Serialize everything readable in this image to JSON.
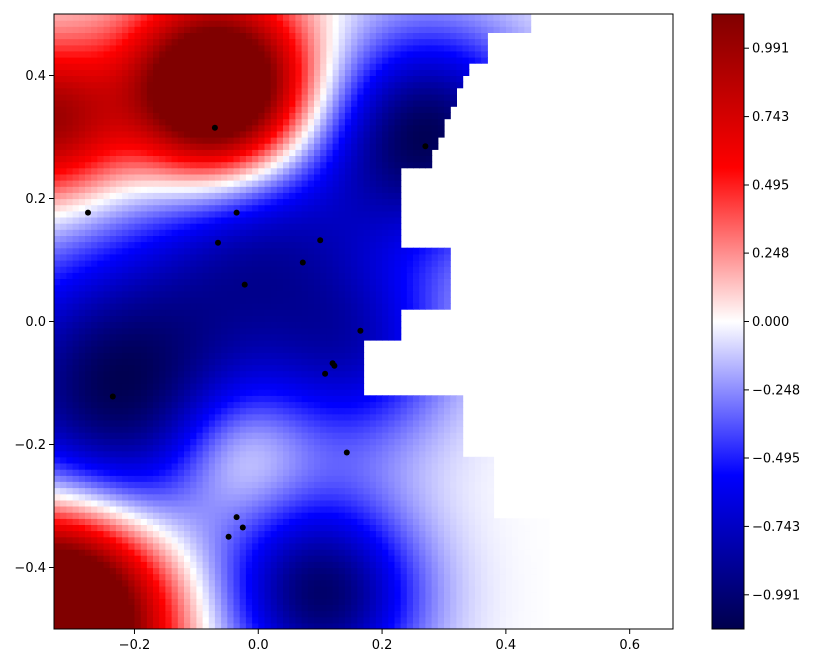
{
  "chart_data": {
    "type": "heatmap",
    "title": "",
    "xlabel": "",
    "ylabel": "",
    "xlim": [
      -0.33,
      0.67
    ],
    "ylim": [
      -0.5,
      0.5
    ],
    "x_ticks": [
      -0.2,
      0.0,
      0.2,
      0.4,
      0.6
    ],
    "x_tick_labels": [
      "−0.2",
      "0.0",
      "0.2",
      "0.4",
      "0.6"
    ],
    "y_ticks": [
      -0.4,
      -0.2,
      0.0,
      0.2,
      0.4
    ],
    "y_tick_labels": [
      "−0.4",
      "−0.2",
      "0.0",
      "0.2",
      "0.4"
    ],
    "grid": false,
    "colormap": "seismic",
    "colorbar": {
      "range": [
        -1.115,
        1.115
      ],
      "ticks": [
        -0.991,
        -0.743,
        -0.495,
        -0.248,
        0.0,
        0.248,
        0.495,
        0.743,
        0.991
      ],
      "tick_labels": [
        "−0.991",
        "−0.743",
        "−0.495",
        "−0.248",
        "0.000",
        "0.248",
        "0.495",
        "0.743",
        "0.991"
      ],
      "colors": [
        "#00004c",
        "#0000ff",
        "#ffffff",
        "#ff0000",
        "#800000"
      ]
    },
    "field_sources": [
      {
        "x": -0.23,
        "y": -0.12,
        "amp": -1.1,
        "sigma": 0.17
      },
      {
        "x": 0.27,
        "y": 0.3,
        "amp": -1.05,
        "sigma": 0.12
      },
      {
        "x": 0.1,
        "y": -0.45,
        "amp": -1.0,
        "sigma": 0.11
      },
      {
        "x": 0.0,
        "y": 0.14,
        "amp": -0.65,
        "sigma": 0.13
      },
      {
        "x": 0.16,
        "y": -0.05,
        "amp": -0.6,
        "sigma": 0.11
      },
      {
        "x": -0.07,
        "y": 0.37,
        "amp": 1.9,
        "sigma": 0.1
      },
      {
        "x": -0.35,
        "y": 0.32,
        "amp": 1.0,
        "sigma": 0.09
      },
      {
        "x": -0.33,
        "y": -0.48,
        "amp": 2.1,
        "sigma": 0.12
      },
      {
        "x": -0.04,
        "y": -0.22,
        "amp": 0.4,
        "sigma": 0.08
      }
    ],
    "points": [
      {
        "x": -0.07,
        "y": 0.315
      },
      {
        "x": -0.275,
        "y": 0.177
      },
      {
        "x": -0.035,
        "y": 0.177
      },
      {
        "x": -0.065,
        "y": 0.128
      },
      {
        "x": 0.1,
        "y": 0.132
      },
      {
        "x": 0.072,
        "y": 0.096
      },
      {
        "x": -0.022,
        "y": 0.06
      },
      {
        "x": 0.165,
        "y": -0.015
      },
      {
        "x": 0.12,
        "y": -0.068
      },
      {
        "x": 0.123,
        "y": -0.072
      },
      {
        "x": 0.108,
        "y": -0.085
      },
      {
        "x": -0.235,
        "y": -0.122
      },
      {
        "x": 0.143,
        "y": -0.213
      },
      {
        "x": -0.035,
        "y": -0.318
      },
      {
        "x": -0.025,
        "y": -0.335
      },
      {
        "x": -0.048,
        "y": -0.35
      },
      {
        "x": 0.27,
        "y": 0.285
      }
    ]
  }
}
